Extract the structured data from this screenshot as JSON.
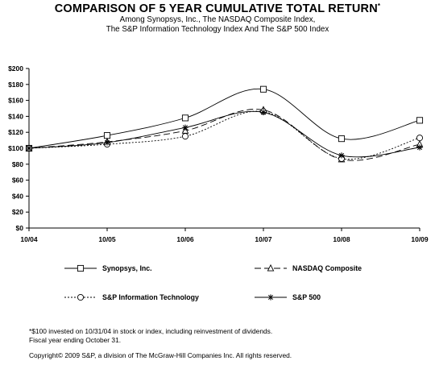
{
  "header": {
    "title": "COMPARISON OF 5 YEAR CUMULATIVE TOTAL RETURN",
    "title_mark": "*",
    "subtitle_1": "Among Synopsys, Inc., The NASDAQ Composite Index,",
    "subtitle_2": "The S&P Information Technology Index And The S&P 500 Index"
  },
  "chart_data": {
    "type": "line",
    "title": "COMPARISON OF 5 YEAR CUMULATIVE TOTAL RETURN*",
    "categories": [
      "10/04",
      "10/05",
      "10/06",
      "10/07",
      "10/08",
      "10/09"
    ],
    "y_ticks": [
      "$0",
      "$20",
      "$40",
      "$60",
      "$80",
      "$100",
      "$120",
      "$140",
      "$160",
      "$180",
      "$200"
    ],
    "ylim": [
      0,
      200
    ],
    "grid": false,
    "legend_position": "bottom",
    "series": [
      {
        "name": "Synopsys, Inc.",
        "marker": "square",
        "dash": "solid",
        "values": [
          100,
          116,
          138,
          174,
          112,
          135
        ]
      },
      {
        "name": "NASDAQ Composite",
        "marker": "triangle",
        "dash": "longdash",
        "values": [
          100,
          108,
          122,
          148,
          86,
          105
        ]
      },
      {
        "name": "S&P Information Technology",
        "marker": "circle",
        "dash": "dotted",
        "values": [
          100,
          105,
          115,
          146,
          87,
          113
        ]
      },
      {
        "name": "S&P 500",
        "marker": "asterisk",
        "dash": "solid",
        "values": [
          100,
          107,
          126,
          145,
          91,
          101
        ]
      }
    ]
  },
  "footnotes": {
    "line_1": "*$100 invested on 10/31/04 in stock or index, including reinvestment of dividends.",
    "line_2": "Fiscal year ending October 31.",
    "copyright": "Copyright© 2009 S&P, a division of The McGraw-Hill Companies Inc. All rights reserved."
  }
}
